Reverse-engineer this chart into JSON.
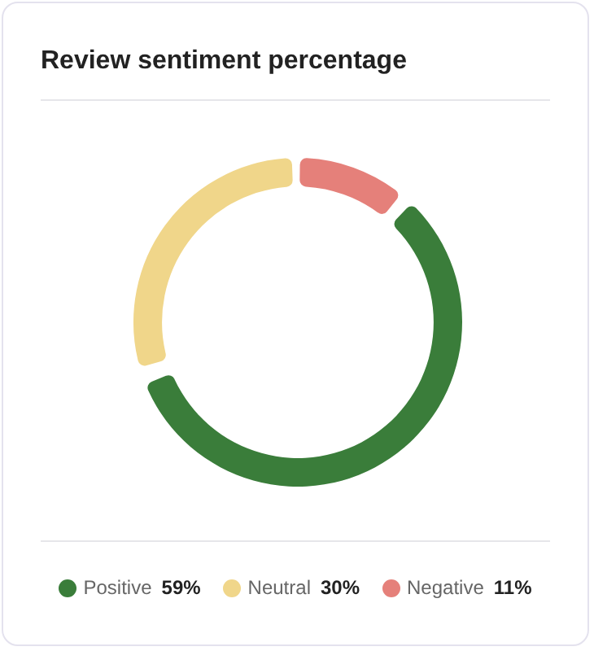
{
  "chart_data": {
    "type": "donut",
    "title": "Review sentiment percentage",
    "categories": [
      "Positive",
      "Neutral",
      "Negative"
    ],
    "values": [
      59,
      30,
      11
    ],
    "colors": [
      "#3a7d3a",
      "#f0d68a",
      "#e5807a"
    ],
    "value_labels": [
      "59%",
      "30%",
      "11%"
    ],
    "legend": "bottom"
  }
}
